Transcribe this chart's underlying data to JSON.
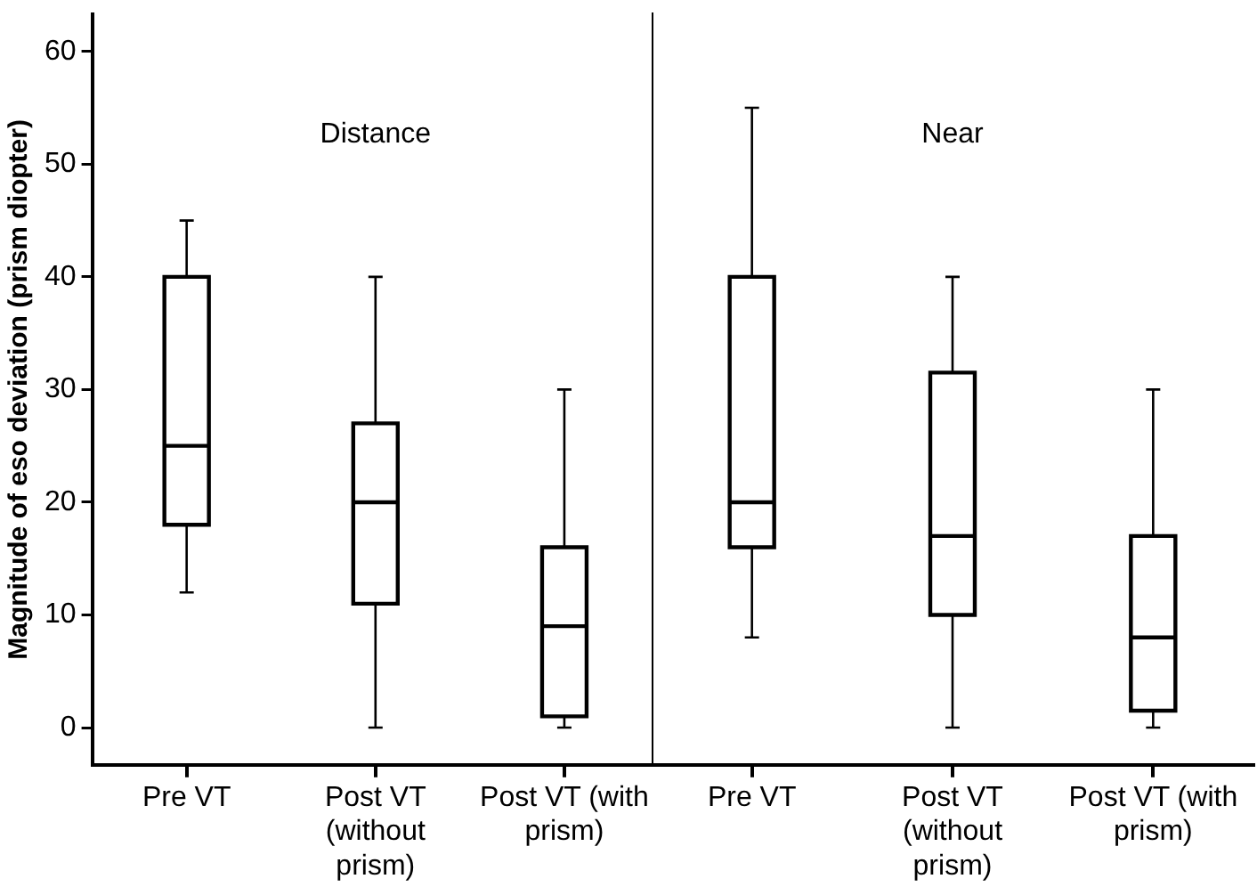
{
  "chart_data": [
    {
      "type": "box",
      "ylabel": "Magnitude of eso deviation (prism diopter)",
      "annotations": [
        "Distance"
      ],
      "categories": [
        "Pre VT",
        "Post VT (without prism)",
        "Post VT (with prism)"
      ],
      "ylim": [
        -3.3,
        63.3
      ],
      "yticks": [
        0,
        10,
        20,
        30,
        40,
        50,
        60
      ],
      "boxes": [
        {
          "low": 12,
          "q1": 18,
          "median": 25,
          "q3": 40,
          "high": 45
        },
        {
          "low": 0,
          "q1": 11,
          "median": 20,
          "q3": 27,
          "high": 40
        },
        {
          "low": 0,
          "q1": 1,
          "median": 9,
          "q3": 16,
          "high": 30
        }
      ]
    },
    {
      "type": "box",
      "annotations": [
        "Near"
      ],
      "categories": [
        "Pre VT",
        "Post VT (without prism)",
        "Post VT (with prism)"
      ],
      "ylim": [
        -3.3,
        63.3
      ],
      "yticks": [
        0,
        10,
        20,
        30,
        40,
        50,
        60
      ],
      "tick_labels": "x",
      "boxes": [
        {
          "low": 8,
          "q1": 16,
          "median": 20,
          "q3": 40,
          "high": 55
        },
        {
          "low": 0,
          "q1": 10,
          "median": 17,
          "q3": 31.5,
          "high": 40
        },
        {
          "low": 0,
          "q1": 1.5,
          "median": 8,
          "q3": 17,
          "high": 30
        }
      ]
    }
  ]
}
